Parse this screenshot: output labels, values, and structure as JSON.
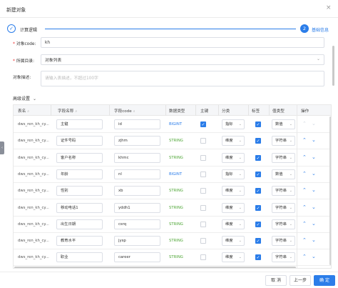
{
  "dialog": {
    "title": "新建对象",
    "close_glyph": "×"
  },
  "steps": [
    {
      "label": "计算逻辑",
      "icon_glyph": "✓"
    },
    {
      "label": "基础信息",
      "number": "2"
    }
  ],
  "form": {
    "code": {
      "label": "对象code:",
      "value": "kh"
    },
    "dir": {
      "label": "所属目录:",
      "value": "对象列表"
    },
    "desc": {
      "label": "对象描述:",
      "placeholder": "请输入表描述，不超过100字"
    }
  },
  "advanced": {
    "label": "高级设置",
    "chevron": "⌄"
  },
  "table": {
    "headers": [
      "表名",
      "字段名称",
      "字段code",
      "数据类型",
      "主键",
      "分类",
      "标签",
      "值类型",
      "操作"
    ],
    "rows": [
      {
        "table": "dws_ren_kh_cy...",
        "name": "主键",
        "code": "id",
        "type": "BIGINT",
        "pk": true,
        "cat": "指标",
        "tag": true,
        "vt": "数值",
        "up": false,
        "down": false
      },
      {
        "table": "dws_ren_kh_cy...",
        "name": "证件号码",
        "code": "zjhm",
        "type": "STRING",
        "pk": false,
        "cat": "维度",
        "tag": true,
        "vt": "字符串",
        "up": true,
        "down": true
      },
      {
        "table": "dws_ren_kh_cy...",
        "name": "客户名称",
        "code": "khmc",
        "type": "STRING",
        "pk": false,
        "cat": "维度",
        "tag": true,
        "vt": "字符串",
        "up": true,
        "down": true
      },
      {
        "table": "dws_ren_kh_cy...",
        "name": "年龄",
        "code": "nl",
        "type": "BIGINT",
        "pk": false,
        "cat": "指标",
        "tag": true,
        "vt": "数值",
        "up": true,
        "down": true
      },
      {
        "table": "dws_ren_kh_cy...",
        "name": "性别",
        "code": "xb",
        "type": "STRING",
        "pk": false,
        "cat": "维度",
        "tag": true,
        "vt": "字符串",
        "up": true,
        "down": true
      },
      {
        "table": "dws_ren_kh_cy...",
        "name": "移动电话1",
        "code": "yddh1",
        "type": "STRING",
        "pk": false,
        "cat": "维度",
        "tag": true,
        "vt": "字符串",
        "up": true,
        "down": true
      },
      {
        "table": "dws_ren_kh_cy...",
        "name": "出生日期",
        "code": "csrq",
        "type": "STRING",
        "pk": false,
        "cat": "维度",
        "tag": true,
        "vt": "字符串",
        "up": true,
        "down": true
      },
      {
        "table": "dws_ren_kh_cy...",
        "name": "教育水平",
        "code": "jysp",
        "type": "STRING",
        "pk": false,
        "cat": "维度",
        "tag": true,
        "vt": "字符串",
        "up": true,
        "down": true
      },
      {
        "table": "dws_ren_kh_cy...",
        "name": "职业",
        "code": "career",
        "type": "STRING",
        "pk": false,
        "cat": "维度",
        "tag": true,
        "vt": "字符串",
        "up": true,
        "down": true
      }
    ]
  },
  "footer": {
    "cancel": "取 消",
    "prev": "上一步",
    "confirm": "确 定"
  },
  "colors": {
    "accent": "#2b7de9",
    "bigint": "#2b7de9",
    "string": "#52a83a"
  }
}
